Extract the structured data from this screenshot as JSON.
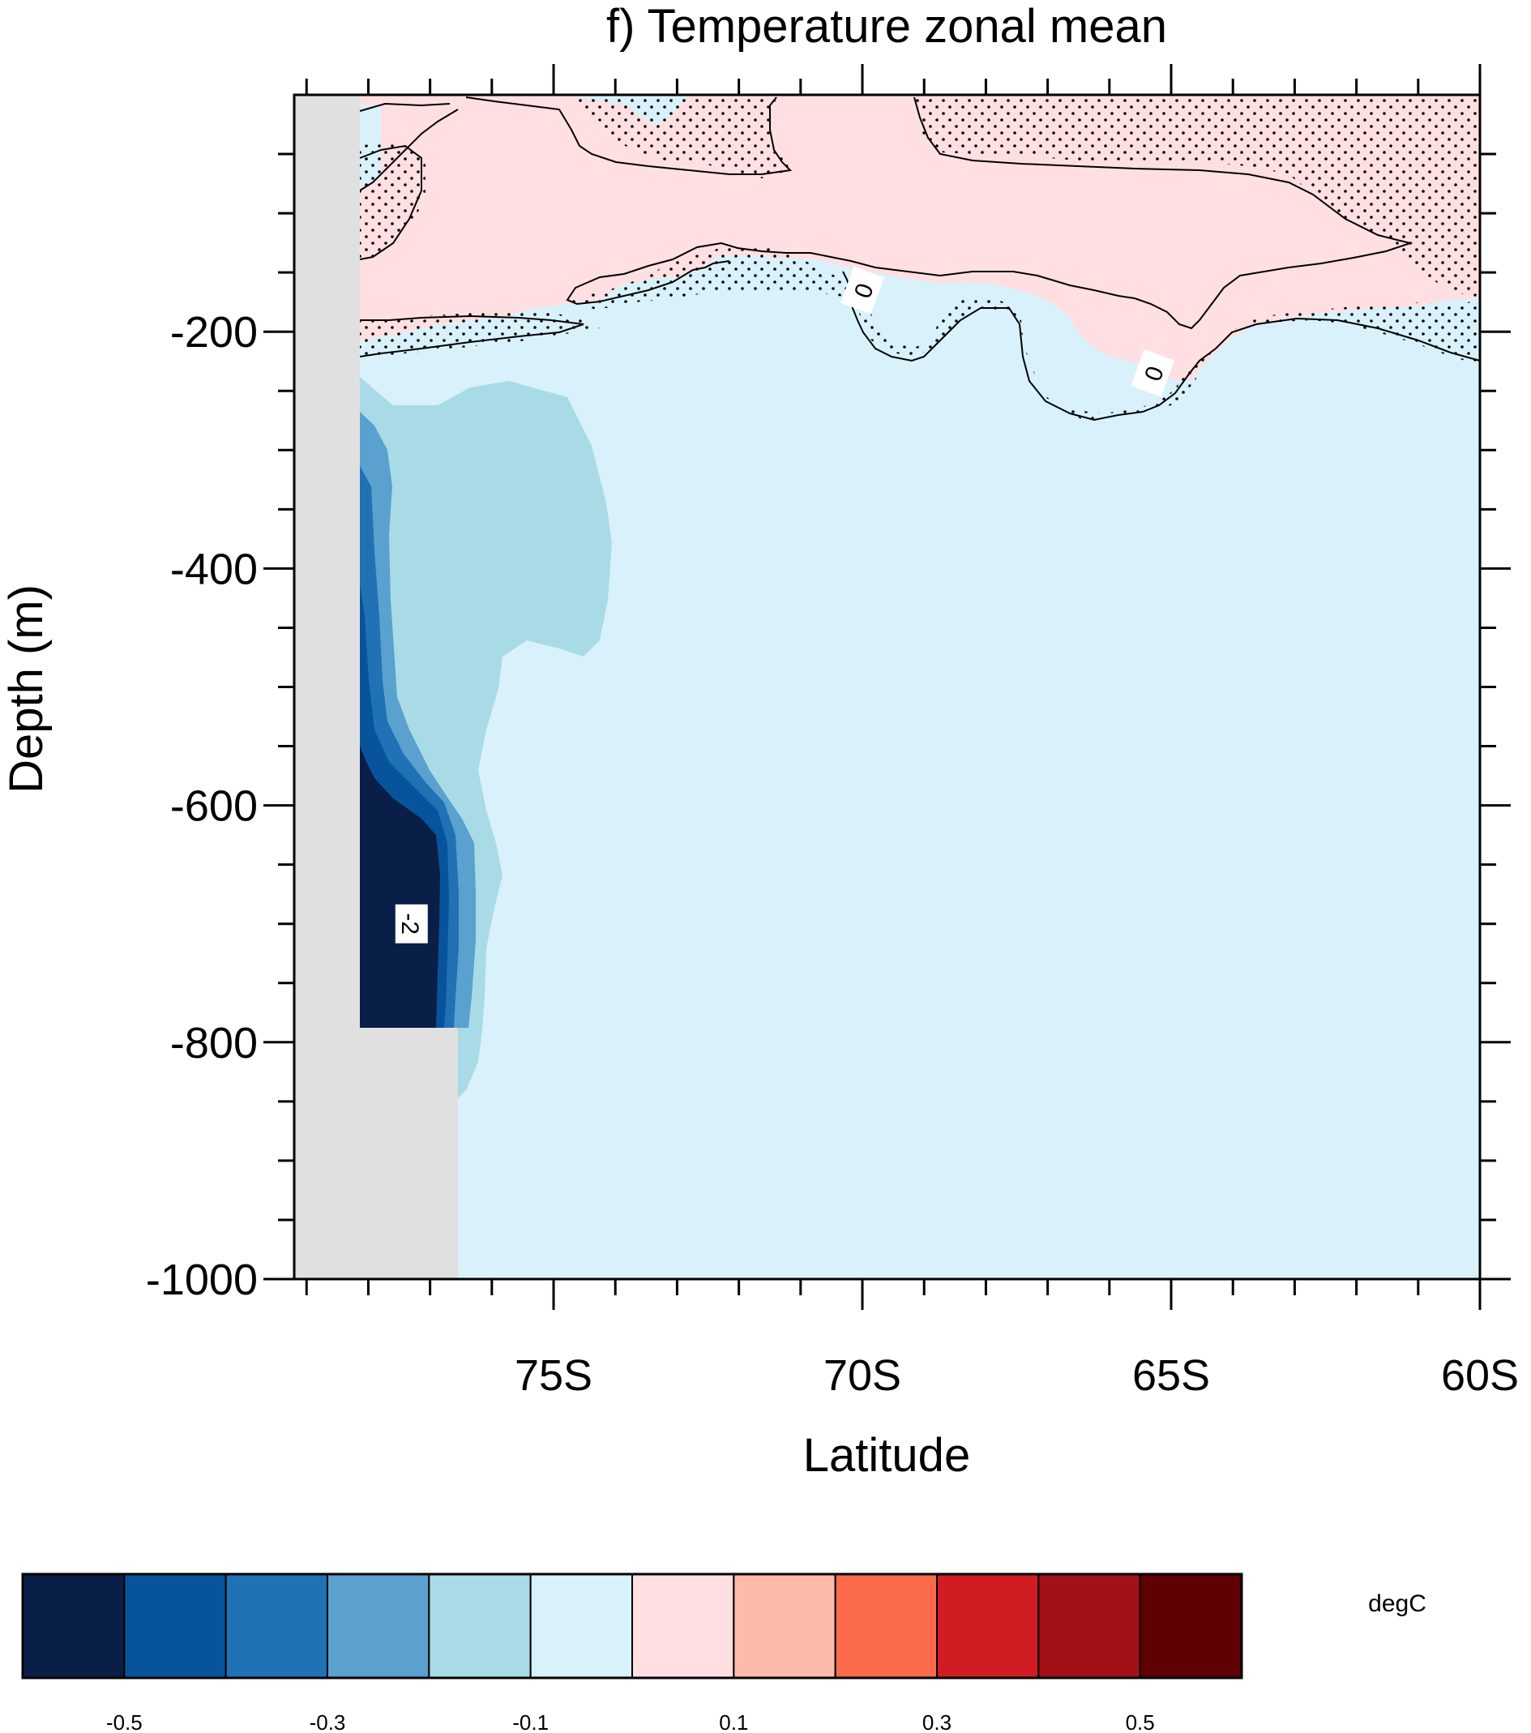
{
  "chart_data": {
    "type": "contour",
    "title": "f) Temperature zonal mean",
    "xlabel": "Latitude",
    "ylabel": "Depth (m)",
    "xlim": [
      -79.2,
      -60
    ],
    "ylim": [
      -1000,
      0
    ],
    "x_ticks": [
      {
        "value": -75,
        "label": "75S"
      },
      {
        "value": -70,
        "label": "70S"
      },
      {
        "value": -65,
        "label": "65S"
      },
      {
        "value": -60,
        "label": "60S"
      }
    ],
    "y_ticks": [
      {
        "value": -200,
        "label": "-200"
      },
      {
        "value": -400,
        "label": "-400"
      },
      {
        "value": -600,
        "label": "-600"
      },
      {
        "value": -800,
        "label": "-800"
      },
      {
        "value": -1000,
        "label": "-1000"
      }
    ],
    "contour_labels": [
      {
        "text": "0",
        "lat": -70.0,
        "depth": -165
      },
      {
        "text": "0",
        "lat": -65.3,
        "depth": -235
      },
      {
        "text": "-2",
        "lat": -77.3,
        "depth": -700
      }
    ],
    "colorbar": {
      "units": "degC",
      "levels": [
        -0.5,
        -0.4,
        -0.3,
        -0.2,
        -0.1,
        0,
        0.1,
        0.2,
        0.3,
        0.4,
        0.5
      ],
      "labels": [
        "-0.5",
        "-0.3",
        "-0.1",
        "0.1",
        "0.3",
        "0.5"
      ],
      "colors": [
        "#0a1f47",
        "#08549c",
        "#2171b5",
        "#5aa1cf",
        "#a8dbe6",
        "#d8f1fb",
        "#ffdfe2",
        "#fdb9a9",
        "#fb6a4a",
        "#d01c22",
        "#a31118",
        "#5e0004"
      ]
    },
    "fields": {
      "land_color": "#e0e0e0",
      "background_color": "#d8f1fb"
    }
  }
}
